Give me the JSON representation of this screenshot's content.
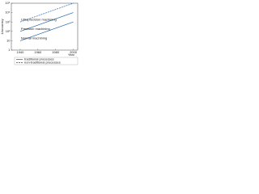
{
  "chart_data": {
    "type": "line",
    "y_label": "1/accuracy",
    "x_label": "Year",
    "x": [
      1940,
      2000
    ],
    "xlim": [
      1930,
      2005
    ],
    "xticks": [
      1940,
      1960,
      1980,
      2000
    ],
    "ylim": [
      1,
      100000
    ],
    "yscale": "log",
    "yticks": [
      1,
      10,
      {
        "value": 100,
        "label": "10²"
      },
      {
        "value": 1000,
        "label": "10³"
      },
      {
        "value": 10000,
        "label": "10⁴"
      },
      {
        "value": 100000,
        "label": "10⁵"
      }
    ],
    "grid": false,
    "series": [
      {
        "name": "Normal machining",
        "color": "#1f5fa8",
        "dash": false,
        "values": [
          10,
          1000
        ]
      },
      {
        "name": "Precision machining",
        "color": "#1f5fa8",
        "dash": false,
        "values": [
          100,
          10000
        ]
      },
      {
        "name": "Ultraprecision machining",
        "color": "#1f5fa8",
        "dash": true,
        "values": [
          1000,
          100000
        ]
      }
    ],
    "legend": [
      {
        "label": "traditional processes",
        "color": "#1f5fa8",
        "dash": false
      },
      {
        "label": "non-traditional processes",
        "color": "#1f5fa8",
        "dash": true
      }
    ]
  }
}
